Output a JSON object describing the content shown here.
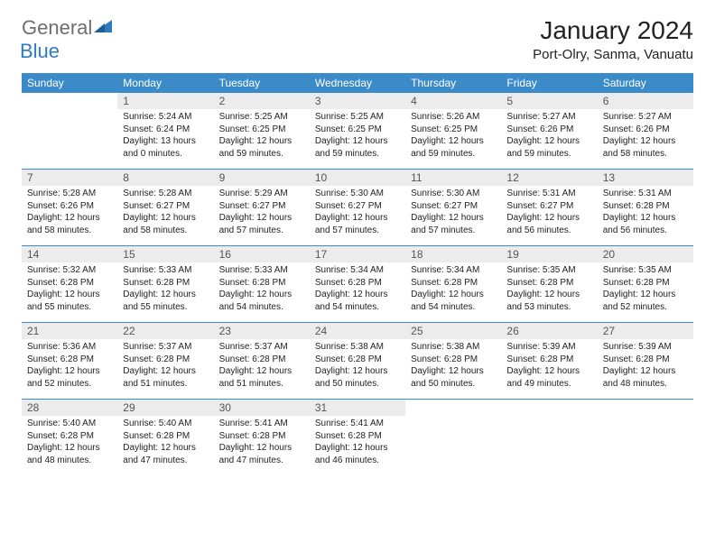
{
  "logo": {
    "text1": "General",
    "text2": "Blue"
  },
  "colors": {
    "header_bg": "#3b8bc8",
    "daynum_bg": "#ececec",
    "logo_gray": "#6e6e6e",
    "logo_blue": "#2f7bbf",
    "rule": "#3b8bc8"
  },
  "title": "January 2024",
  "location": "Port-Olry, Sanma, Vanuatu",
  "day_names": [
    "Sunday",
    "Monday",
    "Tuesday",
    "Wednesday",
    "Thursday",
    "Friday",
    "Saturday"
  ],
  "weeks": [
    [
      {
        "num": "",
        "sunrise": "",
        "sunset": "",
        "daylight": ""
      },
      {
        "num": "1",
        "sunrise": "Sunrise: 5:24 AM",
        "sunset": "Sunset: 6:24 PM",
        "daylight": "Daylight: 13 hours and 0 minutes."
      },
      {
        "num": "2",
        "sunrise": "Sunrise: 5:25 AM",
        "sunset": "Sunset: 6:25 PM",
        "daylight": "Daylight: 12 hours and 59 minutes."
      },
      {
        "num": "3",
        "sunrise": "Sunrise: 5:25 AM",
        "sunset": "Sunset: 6:25 PM",
        "daylight": "Daylight: 12 hours and 59 minutes."
      },
      {
        "num": "4",
        "sunrise": "Sunrise: 5:26 AM",
        "sunset": "Sunset: 6:25 PM",
        "daylight": "Daylight: 12 hours and 59 minutes."
      },
      {
        "num": "5",
        "sunrise": "Sunrise: 5:27 AM",
        "sunset": "Sunset: 6:26 PM",
        "daylight": "Daylight: 12 hours and 59 minutes."
      },
      {
        "num": "6",
        "sunrise": "Sunrise: 5:27 AM",
        "sunset": "Sunset: 6:26 PM",
        "daylight": "Daylight: 12 hours and 58 minutes."
      }
    ],
    [
      {
        "num": "7",
        "sunrise": "Sunrise: 5:28 AM",
        "sunset": "Sunset: 6:26 PM",
        "daylight": "Daylight: 12 hours and 58 minutes."
      },
      {
        "num": "8",
        "sunrise": "Sunrise: 5:28 AM",
        "sunset": "Sunset: 6:27 PM",
        "daylight": "Daylight: 12 hours and 58 minutes."
      },
      {
        "num": "9",
        "sunrise": "Sunrise: 5:29 AM",
        "sunset": "Sunset: 6:27 PM",
        "daylight": "Daylight: 12 hours and 57 minutes."
      },
      {
        "num": "10",
        "sunrise": "Sunrise: 5:30 AM",
        "sunset": "Sunset: 6:27 PM",
        "daylight": "Daylight: 12 hours and 57 minutes."
      },
      {
        "num": "11",
        "sunrise": "Sunrise: 5:30 AM",
        "sunset": "Sunset: 6:27 PM",
        "daylight": "Daylight: 12 hours and 57 minutes."
      },
      {
        "num": "12",
        "sunrise": "Sunrise: 5:31 AM",
        "sunset": "Sunset: 6:27 PM",
        "daylight": "Daylight: 12 hours and 56 minutes."
      },
      {
        "num": "13",
        "sunrise": "Sunrise: 5:31 AM",
        "sunset": "Sunset: 6:28 PM",
        "daylight": "Daylight: 12 hours and 56 minutes."
      }
    ],
    [
      {
        "num": "14",
        "sunrise": "Sunrise: 5:32 AM",
        "sunset": "Sunset: 6:28 PM",
        "daylight": "Daylight: 12 hours and 55 minutes."
      },
      {
        "num": "15",
        "sunrise": "Sunrise: 5:33 AM",
        "sunset": "Sunset: 6:28 PM",
        "daylight": "Daylight: 12 hours and 55 minutes."
      },
      {
        "num": "16",
        "sunrise": "Sunrise: 5:33 AM",
        "sunset": "Sunset: 6:28 PM",
        "daylight": "Daylight: 12 hours and 54 minutes."
      },
      {
        "num": "17",
        "sunrise": "Sunrise: 5:34 AM",
        "sunset": "Sunset: 6:28 PM",
        "daylight": "Daylight: 12 hours and 54 minutes."
      },
      {
        "num": "18",
        "sunrise": "Sunrise: 5:34 AM",
        "sunset": "Sunset: 6:28 PM",
        "daylight": "Daylight: 12 hours and 54 minutes."
      },
      {
        "num": "19",
        "sunrise": "Sunrise: 5:35 AM",
        "sunset": "Sunset: 6:28 PM",
        "daylight": "Daylight: 12 hours and 53 minutes."
      },
      {
        "num": "20",
        "sunrise": "Sunrise: 5:35 AM",
        "sunset": "Sunset: 6:28 PM",
        "daylight": "Daylight: 12 hours and 52 minutes."
      }
    ],
    [
      {
        "num": "21",
        "sunrise": "Sunrise: 5:36 AM",
        "sunset": "Sunset: 6:28 PM",
        "daylight": "Daylight: 12 hours and 52 minutes."
      },
      {
        "num": "22",
        "sunrise": "Sunrise: 5:37 AM",
        "sunset": "Sunset: 6:28 PM",
        "daylight": "Daylight: 12 hours and 51 minutes."
      },
      {
        "num": "23",
        "sunrise": "Sunrise: 5:37 AM",
        "sunset": "Sunset: 6:28 PM",
        "daylight": "Daylight: 12 hours and 51 minutes."
      },
      {
        "num": "24",
        "sunrise": "Sunrise: 5:38 AM",
        "sunset": "Sunset: 6:28 PM",
        "daylight": "Daylight: 12 hours and 50 minutes."
      },
      {
        "num": "25",
        "sunrise": "Sunrise: 5:38 AM",
        "sunset": "Sunset: 6:28 PM",
        "daylight": "Daylight: 12 hours and 50 minutes."
      },
      {
        "num": "26",
        "sunrise": "Sunrise: 5:39 AM",
        "sunset": "Sunset: 6:28 PM",
        "daylight": "Daylight: 12 hours and 49 minutes."
      },
      {
        "num": "27",
        "sunrise": "Sunrise: 5:39 AM",
        "sunset": "Sunset: 6:28 PM",
        "daylight": "Daylight: 12 hours and 48 minutes."
      }
    ],
    [
      {
        "num": "28",
        "sunrise": "Sunrise: 5:40 AM",
        "sunset": "Sunset: 6:28 PM",
        "daylight": "Daylight: 12 hours and 48 minutes."
      },
      {
        "num": "29",
        "sunrise": "Sunrise: 5:40 AM",
        "sunset": "Sunset: 6:28 PM",
        "daylight": "Daylight: 12 hours and 47 minutes."
      },
      {
        "num": "30",
        "sunrise": "Sunrise: 5:41 AM",
        "sunset": "Sunset: 6:28 PM",
        "daylight": "Daylight: 12 hours and 47 minutes."
      },
      {
        "num": "31",
        "sunrise": "Sunrise: 5:41 AM",
        "sunset": "Sunset: 6:28 PM",
        "daylight": "Daylight: 12 hours and 46 minutes."
      },
      {
        "num": "",
        "sunrise": "",
        "sunset": "",
        "daylight": ""
      },
      {
        "num": "",
        "sunrise": "",
        "sunset": "",
        "daylight": ""
      },
      {
        "num": "",
        "sunrise": "",
        "sunset": "",
        "daylight": ""
      }
    ]
  ]
}
